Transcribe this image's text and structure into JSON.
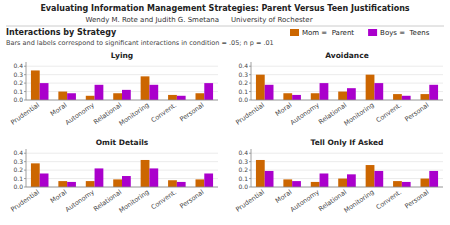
{
  "title": "Evaluating Information Management Strategies: Parent Versus Teen Justifications",
  "subtitle": "Interactions by Strategy",
  "annotations": [
    "Wendy M. Rote and Judith G. Smetana",
    "University of Rochester",
    "Bars and labels correspond to significant interactions in condition = .05; n p = .01"
  ],
  "chart_data": [
    {
      "type": "bar",
      "title": "Lying",
      "categories": [
        "Prudential",
        "Moral",
        "Autonomy",
        "Relational",
        "Monitoring",
        "Convent.",
        "Personal"
      ],
      "series": [
        {
          "name": "Mom =  Parent",
          "color": "#cc6600",
          "values": [
            0.35,
            0.1,
            0.05,
            0.08,
            0.28,
            0.06,
            0.08
          ]
        },
        {
          "name": "Boys =  Teens",
          "color": "#aa00cc",
          "values": [
            0.2,
            0.08,
            0.18,
            0.12,
            0.18,
            0.05,
            0.2
          ]
        }
      ],
      "ylim": [
        0,
        0.45
      ],
      "yticks": [
        {
          "value": 0,
          "label": "0.0"
        },
        0.1,
        0.2,
        0.3,
        0.4
      ]
    },
    {
      "type": "bar",
      "title": "Avoidance",
      "categories": [
        "Prudential",
        "Moral",
        "Autonomy",
        "Relational",
        "Monitoring",
        "Convent.",
        "Personal"
      ],
      "series": [
        {
          "name": "Mom =  Parent",
          "color": "#cc6600",
          "values": [
            0.3,
            0.08,
            0.08,
            0.1,
            0.3,
            0.07,
            0.07
          ]
        },
        {
          "name": "Boys =  Teens",
          "color": "#aa00cc",
          "values": [
            0.18,
            0.06,
            0.2,
            0.14,
            0.2,
            0.05,
            0.18
          ]
        }
      ],
      "ylim": [
        0,
        0.45
      ],
      "yticks": [
        {
          "value": 0,
          "label": "0.0"
        },
        0.1,
        0.2,
        0.3,
        0.4
      ]
    },
    {
      "type": "bar",
      "title": "Omit Details",
      "categories": [
        "Prudential",
        "Moral",
        "Autonomy",
        "Relational",
        "Monitoring",
        "Convent.",
        "Personal"
      ],
      "series": [
        {
          "name": "Mom =  Parent",
          "color": "#cc6600",
          "values": [
            0.28,
            0.07,
            0.07,
            0.09,
            0.32,
            0.08,
            0.09
          ]
        },
        {
          "name": "Boys =  Teens",
          "color": "#aa00cc",
          "values": [
            0.16,
            0.06,
            0.22,
            0.13,
            0.22,
            0.06,
            0.16
          ]
        }
      ],
      "ylim": [
        0,
        0.45
      ],
      "yticks": [
        {
          "value": 0,
          "label": "0.0"
        },
        0.1,
        0.2,
        0.3,
        0.4
      ]
    },
    {
      "type": "bar",
      "title": "Tell Only If Asked",
      "categories": [
        "Prudential",
        "Moral",
        "Autonomy",
        "Relational",
        "Monitoring",
        "Convent.",
        "Personal"
      ],
      "series": [
        {
          "name": "Mom =  Parent",
          "color": "#cc6600",
          "values": [
            0.32,
            0.09,
            0.06,
            0.1,
            0.26,
            0.07,
            0.1
          ]
        },
        {
          "name": "Boys =  Teens",
          "color": "#aa00cc",
          "values": [
            0.19,
            0.07,
            0.16,
            0.15,
            0.19,
            0.06,
            0.19
          ]
        }
      ],
      "ylim": [
        0,
        0.45
      ],
      "yticks": [
        {
          "value": 0,
          "label": "0.0"
        },
        0.1,
        0.2,
        0.3,
        0.4
      ]
    }
  ]
}
